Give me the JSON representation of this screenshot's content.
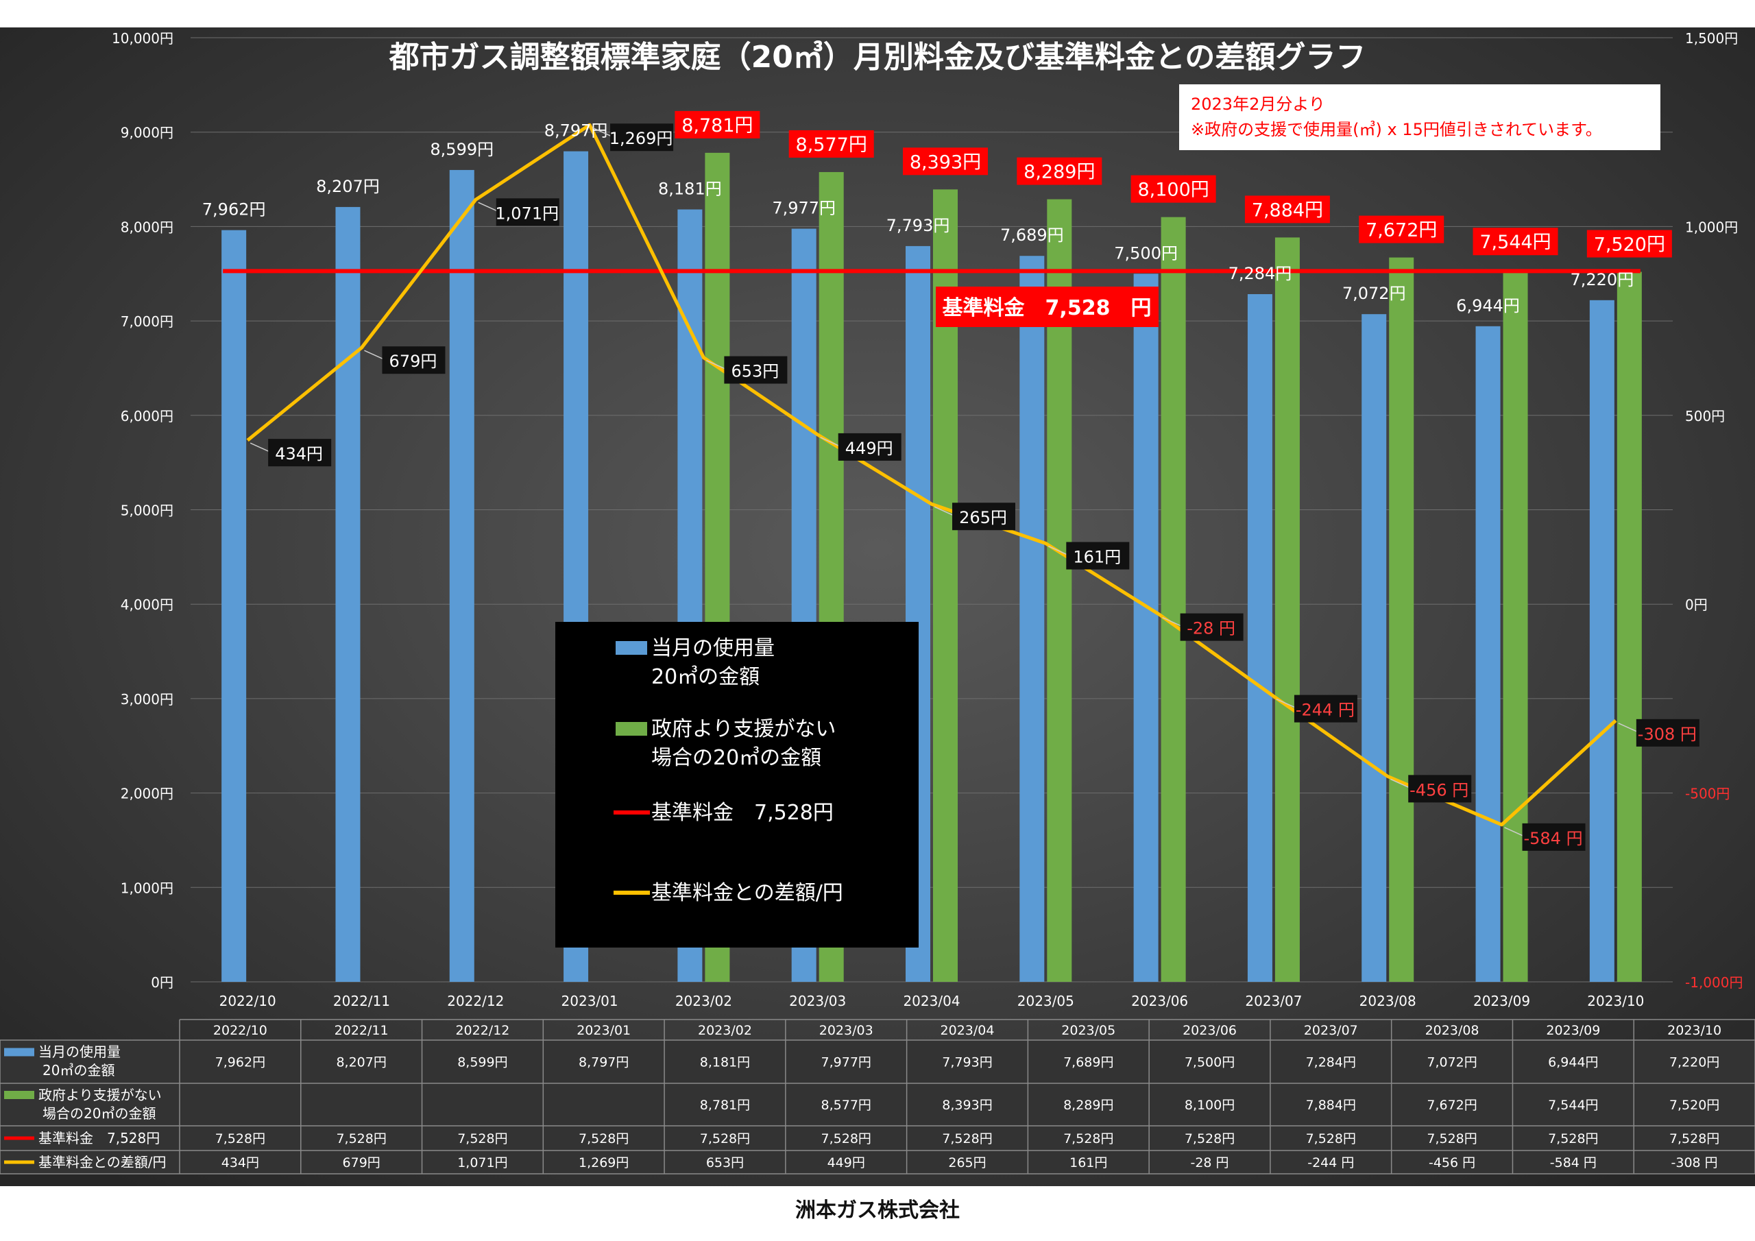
{
  "chart_data": {
    "type": "bar+line",
    "title": "都市ガス調整額標準家庭（20㎥）月別料金及び基準料金との差額グラフ",
    "categories": [
      "2022/10",
      "2022/11",
      "2022/12",
      "2023/01",
      "2023/02",
      "2023/03",
      "2023/04",
      "2023/05",
      "2023/06",
      "2023/07",
      "2023/08",
      "2023/09",
      "2023/10"
    ],
    "y_left": {
      "min": 0,
      "max": 10000,
      "step": 1000,
      "unit": "円"
    },
    "y_right": {
      "min": -1000,
      "max": 1500,
      "step": 500,
      "unit": "円"
    },
    "grid": true,
    "legend_position": "center-bottom",
    "series": [
      {
        "key": "usage",
        "type": "bar",
        "axis": "left",
        "color": "#5b9bd5",
        "legend": [
          "当月の使用量",
          "20㎥の金額"
        ],
        "table_label": [
          "当月の使用量",
          "20㎥の金額"
        ],
        "values": [
          7962,
          8207,
          8599,
          8797,
          8181,
          7977,
          7793,
          7689,
          7500,
          7284,
          7072,
          6944,
          7220
        ],
        "labels": [
          "7,962円",
          "8,207円",
          "8,599円",
          "8,797円",
          "8,181円",
          "7,977円",
          "7,793円",
          "7,689円",
          "7,500円",
          "7,284円",
          "7,072円",
          "6,944円",
          "7,220円"
        ]
      },
      {
        "key": "nosupport",
        "type": "bar",
        "axis": "left",
        "color": "#70ad47",
        "legend": [
          "政府より支援がない",
          "場合の20㎥の金額"
        ],
        "table_label": [
          "政府より支援がない",
          "場合の20㎥の金額"
        ],
        "values": [
          null,
          null,
          null,
          null,
          8781,
          8577,
          8393,
          8289,
          8100,
          7884,
          7672,
          7544,
          7520
        ],
        "labels": [
          "",
          "",
          "",
          "",
          "8,781円",
          "8,577円",
          "8,393円",
          "8,289円",
          "8,100円",
          "7,884円",
          "7,672円",
          "7,544円",
          "7,520円"
        ]
      },
      {
        "key": "base",
        "type": "line",
        "axis": "left",
        "color": "#ff0000",
        "legend": [
          "基準料金　7,528円"
        ],
        "table_label": [
          "基準料金　7,528円"
        ],
        "values": [
          7528,
          7528,
          7528,
          7528,
          7528,
          7528,
          7528,
          7528,
          7528,
          7528,
          7528,
          7528,
          7528
        ],
        "labels": [
          "7,528円",
          "7,528円",
          "7,528円",
          "7,528円",
          "7,528円",
          "7,528円",
          "7,528円",
          "7,528円",
          "7,528円",
          "7,528円",
          "7,528円",
          "7,528円",
          "7,528円"
        ]
      },
      {
        "key": "diff",
        "type": "line",
        "axis": "right",
        "color": "#ffc000",
        "legend": [
          "基準料金との差額/円"
        ],
        "table_label": [
          "基準料金との差額/円"
        ],
        "values": [
          434,
          679,
          1071,
          1269,
          653,
          449,
          265,
          161,
          -28,
          -244,
          -456,
          -584,
          -308
        ],
        "labels": [
          "434円",
          "679円",
          "1,071円",
          "1,269円",
          "653円",
          "449円",
          "265円",
          "161円",
          "-28 円",
          "-244 円",
          "-456 円",
          "-584 円",
          "-308 円"
        ]
      }
    ],
    "base_label": "基準料金　7,528　円",
    "note": [
      "2023年2月分より",
      "※政府の支援で使用量(㎥) x 15円値引きされています。"
    ]
  },
  "footer": "洲本ガス株式会社"
}
